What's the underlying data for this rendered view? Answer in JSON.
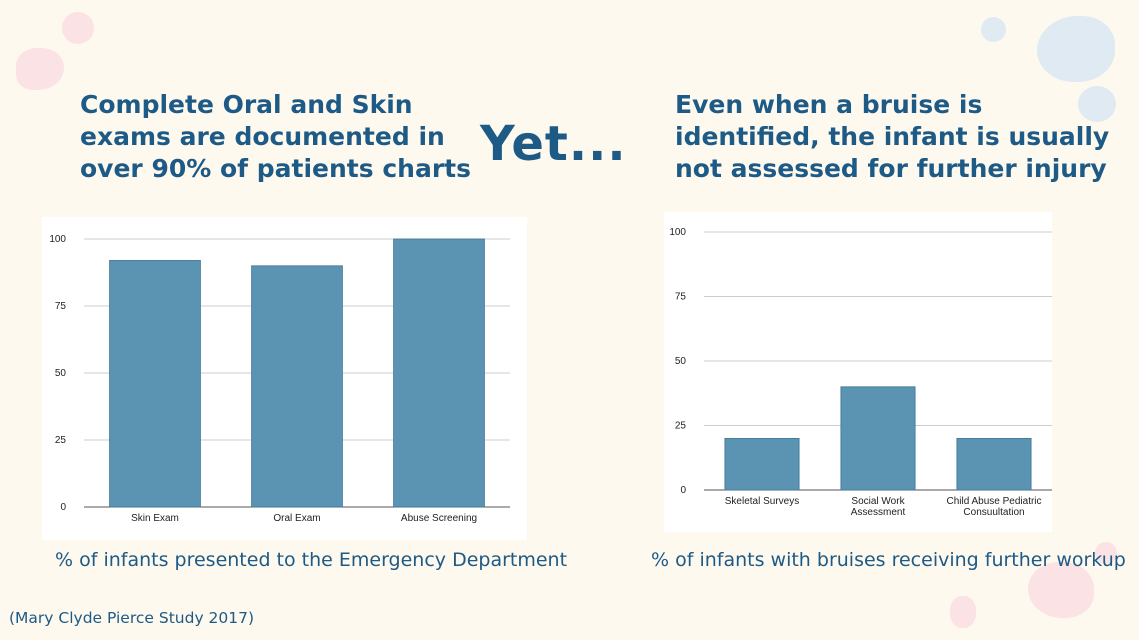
{
  "colors": {
    "background": "#fdf9ee",
    "heading": "#1e5a86",
    "bar": "#5b93b2",
    "grid": "#cccccc",
    "blob_pink": "#fbe2e4",
    "blob_blue": "#dfeaf2"
  },
  "left": {
    "headline": [
      "Complete Oral and Skin",
      "exams are documented in",
      "over 90% of patients charts"
    ],
    "caption": "% of infants presented to the Emergency Department"
  },
  "connector": "Yet...",
  "right": {
    "headline": [
      "Even when a bruise is",
      "identified, the infant is usually",
      "not assessed for further injury"
    ],
    "caption": "% of infants with bruises receiving further workup"
  },
  "source": "(Mary Clyde Pierce Study 2017)",
  "chart_data": [
    {
      "type": "bar",
      "categories": [
        [
          "Skin Exam"
        ],
        [
          "Oral Exam"
        ],
        [
          "Abuse Screening"
        ]
      ],
      "values": [
        92,
        90,
        100
      ],
      "yticks": [
        "0",
        "25",
        "50",
        "75",
        "100"
      ],
      "ylim": [
        0,
        100
      ],
      "grid": true,
      "title": "",
      "xlabel": "",
      "ylabel": ""
    },
    {
      "type": "bar",
      "categories": [
        [
          "Skeletal Surveys"
        ],
        [
          "Social Work",
          "Assessment"
        ],
        [
          "Child Abuse Pediatric",
          "Consuultation"
        ]
      ],
      "values": [
        20,
        40,
        20
      ],
      "yticks": [
        "0",
        "25",
        "50",
        "75",
        "100"
      ],
      "ylim": [
        0,
        100
      ],
      "grid": true,
      "title": "",
      "xlabel": "",
      "ylabel": ""
    }
  ]
}
